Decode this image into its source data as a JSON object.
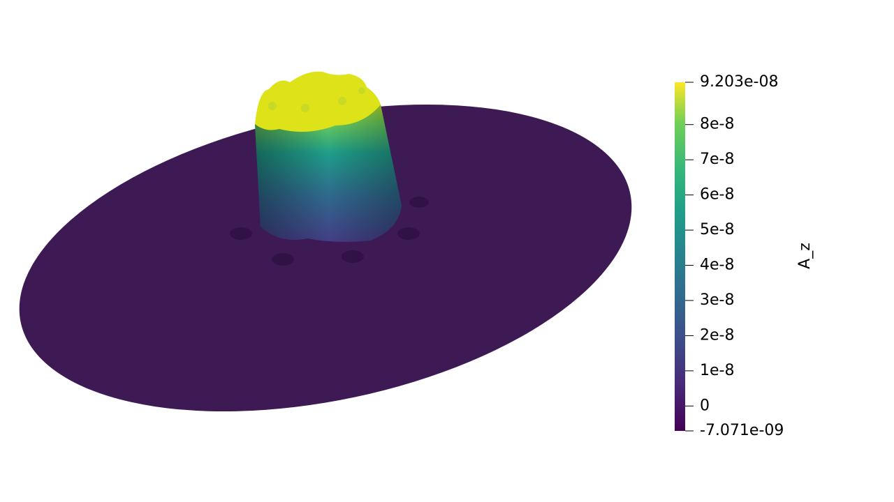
{
  "colorbar": {
    "title": "A_z",
    "range": [
      -7.071e-09,
      9.203e-08
    ],
    "ticks": [
      {
        "value": 9.203e-08,
        "label": "9.203e-08"
      },
      {
        "value": 8e-08,
        "label": "8e-8"
      },
      {
        "value": 7e-08,
        "label": "7e-8"
      },
      {
        "value": 6e-08,
        "label": "6e-8"
      },
      {
        "value": 5e-08,
        "label": "5e-8"
      },
      {
        "value": 4e-08,
        "label": "4e-8"
      },
      {
        "value": 3e-08,
        "label": "3e-8"
      },
      {
        "value": 2e-08,
        "label": "2e-8"
      },
      {
        "value": 1e-08,
        "label": "1e-8"
      },
      {
        "value": 0,
        "label": "0"
      },
      {
        "value": -7.071e-09,
        "label": "-7.071e-09"
      }
    ]
  }
}
